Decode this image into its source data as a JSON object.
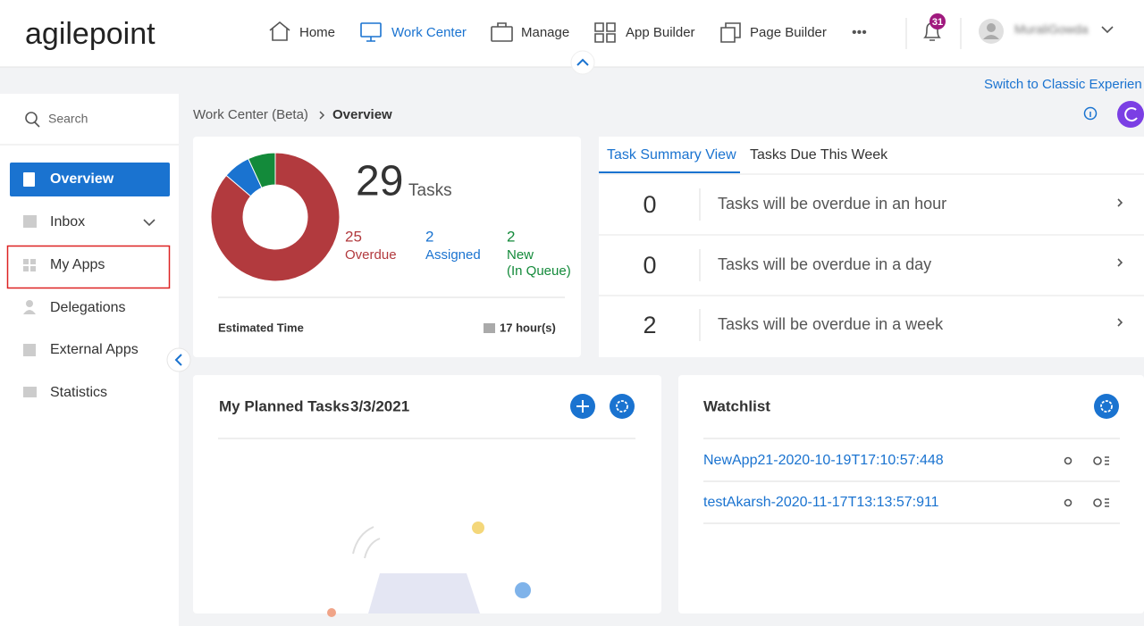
{
  "header": {
    "logo": "agilepoint",
    "nav": [
      "Home",
      "Work Center",
      "Manage",
      "App Builder",
      "Page Builder"
    ],
    "more": "•••",
    "notification_count": 31,
    "user": "MuraliGowda"
  },
  "switch_link": "Switch to Classic Experien",
  "sidebar": {
    "search": "Search",
    "items": [
      "Overview",
      "Inbox",
      "My Apps",
      "Delegations",
      "External Apps",
      "Statistics"
    ]
  },
  "breadcrumb": [
    "Work Center (Beta)",
    "Overview"
  ],
  "summary": {
    "total": 29,
    "total_label": "Tasks",
    "segments": [
      {
        "value": 25,
        "label": "Overdue",
        "color": "#b23a3e"
      },
      {
        "value": 2,
        "label": "Assigned",
        "color": "#1a73d0"
      },
      {
        "value": 2,
        "label": "New",
        "note": "(In Queue)",
        "color": "#138a3a"
      }
    ],
    "estimated_label": "Estimated Time",
    "estimated_value": "17 hour(s)"
  },
  "task_tabs": [
    "Task Summary View",
    "Tasks Due This Week"
  ],
  "task_rows": [
    {
      "count": 0,
      "text": "Tasks will be overdue in an hour"
    },
    {
      "count": 0,
      "text": "Tasks will be overdue in a day"
    },
    {
      "count": 2,
      "text": "Tasks will be overdue in a week"
    }
  ],
  "planned": {
    "title": "My Planned Tasks",
    "date": "3/3/2021"
  },
  "watchlist": {
    "title": "Watchlist",
    "items": [
      "NewApp21-2020-10-19T17:10:57:448",
      "testAkarsh-2020-11-17T13:13:57:911"
    ]
  }
}
